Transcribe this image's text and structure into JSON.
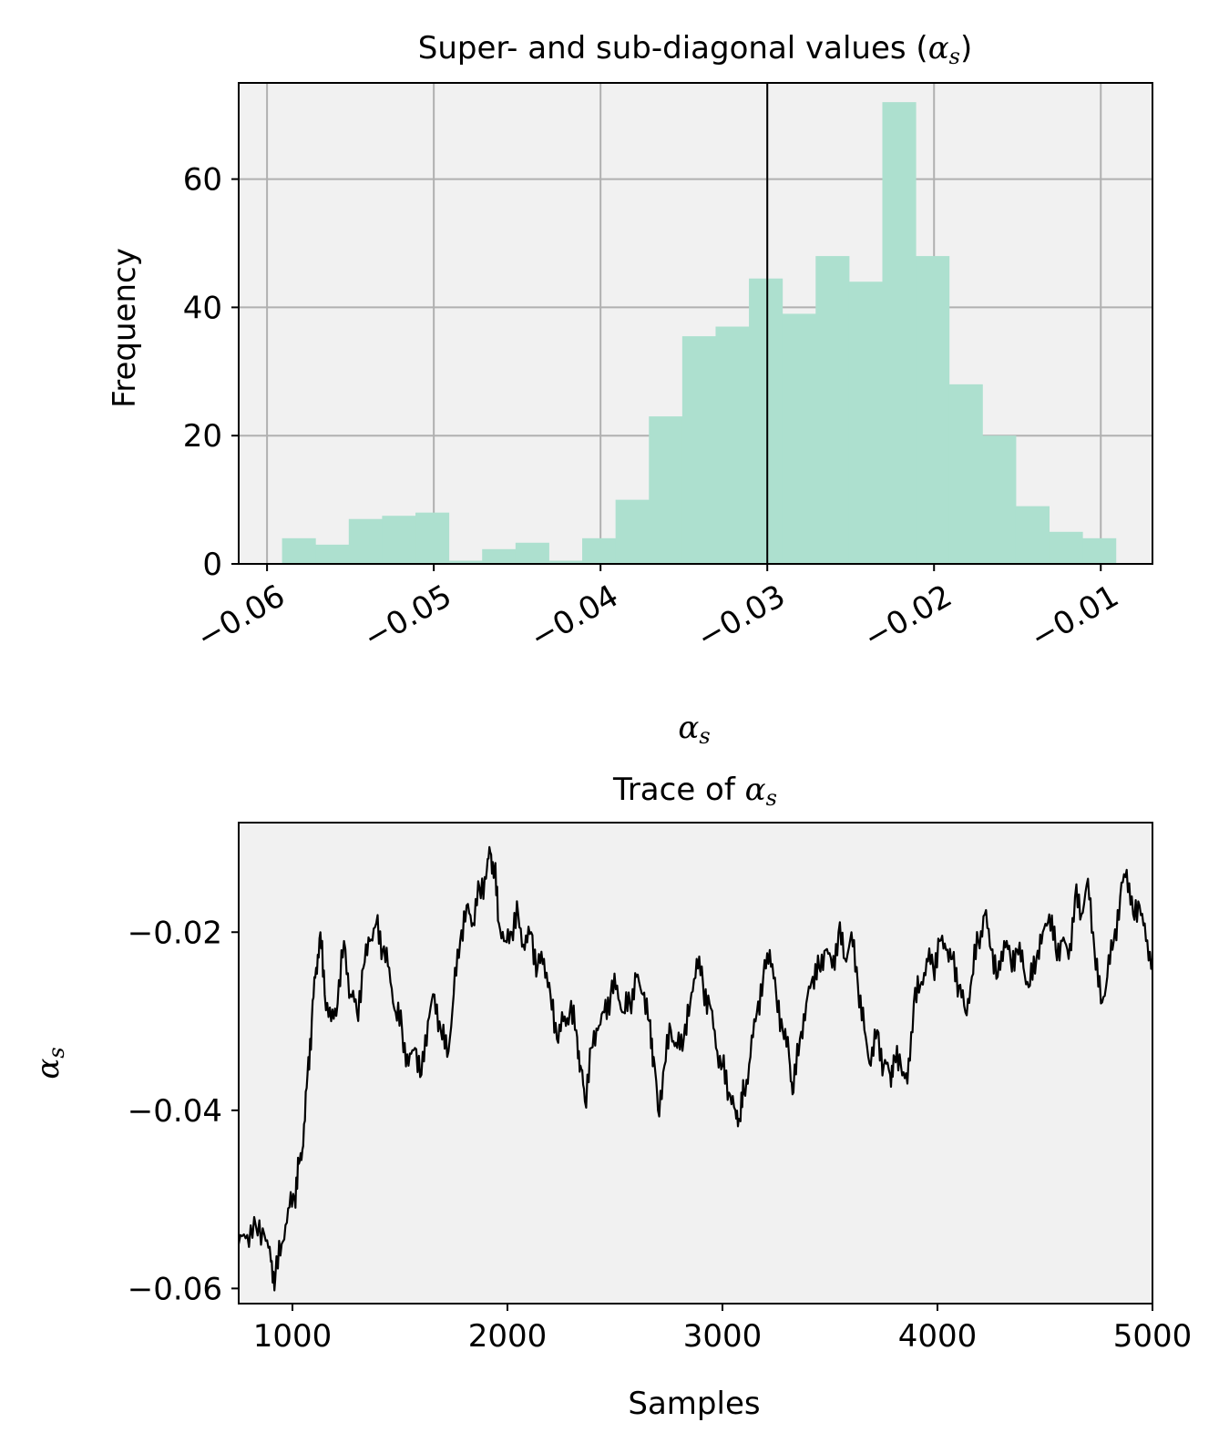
{
  "chart_data": [
    {
      "type": "bar",
      "title_text": "Super- and sub-diagonal values (",
      "title_symbol": "α",
      "title_subscript": "s",
      "title_close": ")",
      "ylabel": "Frequency",
      "xlabel_symbol": "α",
      "xlabel_subscript": "s",
      "xlim": [
        -0.0617,
        -0.0069
      ],
      "ylim": [
        0,
        75
      ],
      "grid": true,
      "xticks": [
        -0.06,
        -0.05,
        -0.04,
        -0.03,
        -0.02,
        -0.01
      ],
      "xtick_labels": [
        "−0.06",
        "−0.05",
        "−0.04",
        "−0.03",
        "−0.02",
        "−0.01"
      ],
      "yticks": [
        0,
        20,
        40,
        60
      ],
      "ytick_labels": [
        "0",
        "20",
        "40",
        "60"
      ],
      "bin_start": -0.0591,
      "bin_width": 0.002,
      "values": [
        4,
        3,
        7,
        7.5,
        8,
        0.5,
        2.3,
        3.3,
        0.5,
        4,
        10,
        23,
        35.5,
        37,
        44.5,
        39,
        48,
        44,
        72,
        48,
        28,
        20,
        9,
        5,
        4
      ],
      "bar_color": "#ade0cf",
      "vline": -0.03
    },
    {
      "type": "line",
      "title_text": "Trace of ",
      "title_symbol": "α",
      "title_subscript": "s",
      "ylabel_symbol": "α",
      "ylabel_subscript": "s",
      "xlabel": "Samples",
      "xlim": [
        750,
        5000
      ],
      "ylim": [
        -0.0617,
        -0.0077
      ],
      "grid": false,
      "xticks": [
        1000,
        2000,
        3000,
        4000,
        5000
      ],
      "xtick_labels": [
        "1000",
        "2000",
        "3000",
        "4000",
        "5000"
      ],
      "yticks": [
        -0.06,
        -0.04,
        -0.02
      ],
      "ytick_labels": [
        "−0.06",
        "−0.04",
        "−0.02"
      ],
      "line_color": "#000000",
      "x": [
        750,
        790,
        830,
        870,
        900,
        920,
        950,
        980,
        1010,
        1030,
        1050,
        1070,
        1090,
        1110,
        1130,
        1150,
        1180,
        1210,
        1240,
        1270,
        1300,
        1330,
        1360,
        1390,
        1420,
        1450,
        1480,
        1510,
        1540,
        1570,
        1600,
        1630,
        1660,
        1690,
        1720,
        1750,
        1780,
        1810,
        1840,
        1870,
        1900,
        1920,
        1940,
        1960,
        1990,
        2020,
        2050,
        2080,
        2110,
        2140,
        2170,
        2200,
        2230,
        2260,
        2290,
        2320,
        2340,
        2360,
        2390,
        2420,
        2450,
        2480,
        2510,
        2540,
        2570,
        2600,
        2630,
        2660,
        2680,
        2700,
        2730,
        2760,
        2790,
        2820,
        2850,
        2880,
        2910,
        2940,
        2970,
        3000,
        3030,
        3060,
        3080,
        3100,
        3130,
        3160,
        3190,
        3220,
        3250,
        3280,
        3310,
        3330,
        3360,
        3390,
        3420,
        3450,
        3480,
        3510,
        3540,
        3570,
        3600,
        3630,
        3660,
        3690,
        3720,
        3750,
        3780,
        3800,
        3830,
        3860,
        3890,
        3920,
        3950,
        3980,
        4010,
        4040,
        4070,
        4100,
        4130,
        4160,
        4190,
        4220,
        4250,
        4280,
        4310,
        4340,
        4370,
        4400,
        4430,
        4460,
        4490,
        4520,
        4550,
        4580,
        4610,
        4640,
        4670,
        4700,
        4730,
        4760,
        4790,
        4820,
        4850,
        4880,
        4910,
        4940,
        4970,
        5000
      ],
      "values": [
        -0.055,
        -0.054,
        -0.053,
        -0.054,
        -0.057,
        -0.059,
        -0.055,
        -0.051,
        -0.05,
        -0.046,
        -0.044,
        -0.036,
        -0.03,
        -0.024,
        -0.02,
        -0.027,
        -0.03,
        -0.028,
        -0.021,
        -0.027,
        -0.029,
        -0.024,
        -0.021,
        -0.019,
        -0.022,
        -0.024,
        -0.029,
        -0.031,
        -0.035,
        -0.033,
        -0.036,
        -0.03,
        -0.027,
        -0.031,
        -0.034,
        -0.027,
        -0.021,
        -0.017,
        -0.019,
        -0.015,
        -0.014,
        -0.011,
        -0.013,
        -0.019,
        -0.021,
        -0.02,
        -0.018,
        -0.022,
        -0.02,
        -0.024,
        -0.023,
        -0.027,
        -0.032,
        -0.03,
        -0.029,
        -0.031,
        -0.035,
        -0.039,
        -0.033,
        -0.031,
        -0.029,
        -0.027,
        -0.026,
        -0.029,
        -0.028,
        -0.025,
        -0.027,
        -0.03,
        -0.034,
        -0.04,
        -0.035,
        -0.031,
        -0.033,
        -0.032,
        -0.028,
        -0.023,
        -0.026,
        -0.028,
        -0.033,
        -0.035,
        -0.038,
        -0.04,
        -0.041,
        -0.038,
        -0.034,
        -0.029,
        -0.025,
        -0.022,
        -0.027,
        -0.031,
        -0.034,
        -0.038,
        -0.032,
        -0.028,
        -0.025,
        -0.024,
        -0.022,
        -0.024,
        -0.02,
        -0.023,
        -0.02,
        -0.026,
        -0.031,
        -0.035,
        -0.031,
        -0.035,
        -0.036,
        -0.034,
        -0.035,
        -0.037,
        -0.028,
        -0.026,
        -0.023,
        -0.024,
        -0.021,
        -0.022,
        -0.023,
        -0.026,
        -0.029,
        -0.025,
        -0.021,
        -0.018,
        -0.022,
        -0.025,
        -0.021,
        -0.023,
        -0.022,
        -0.024,
        -0.026,
        -0.023,
        -0.02,
        -0.018,
        -0.022,
        -0.021,
        -0.023,
        -0.016,
        -0.018,
        -0.014,
        -0.022,
        -0.028,
        -0.025,
        -0.021,
        -0.016,
        -0.013,
        -0.018,
        -0.017,
        -0.021,
        -0.023
      ]
    }
  ]
}
